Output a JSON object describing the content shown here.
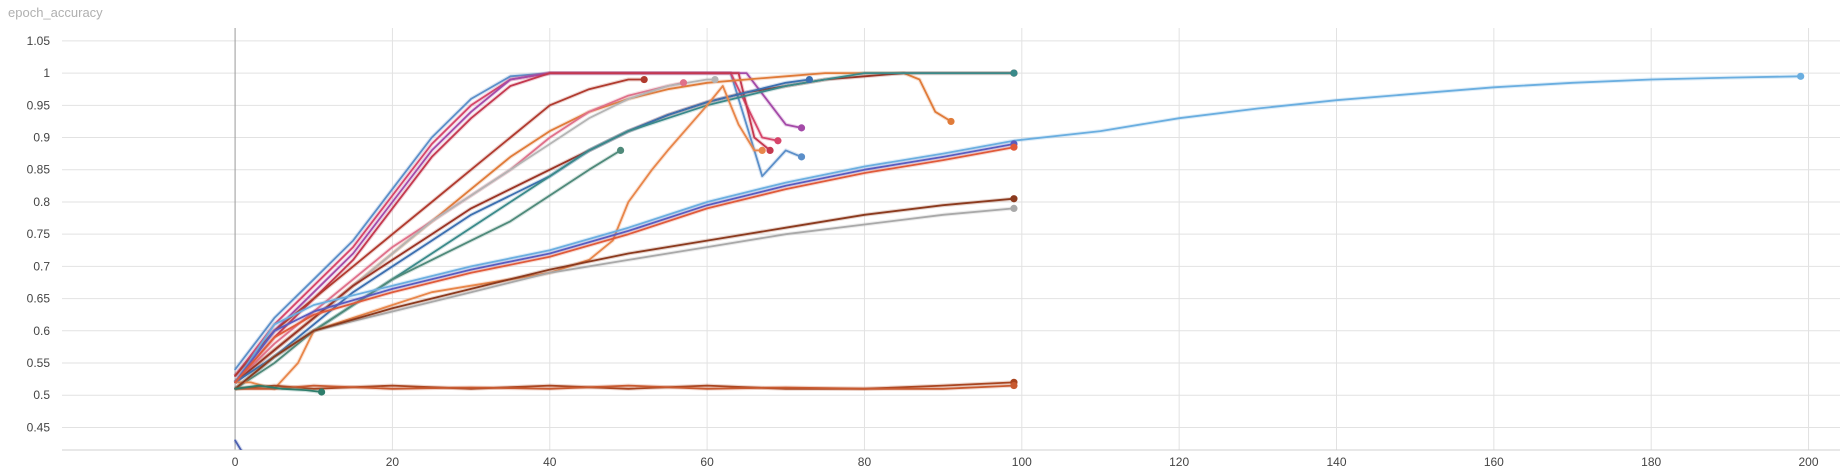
{
  "chart_data": {
    "type": "line",
    "title": "epoch_accuracy",
    "xlabel": "",
    "ylabel": "",
    "xlim": [
      -22,
      204
    ],
    "ylim": [
      0.415,
      1.07
    ],
    "x_ticks": [
      0,
      20,
      40,
      60,
      80,
      100,
      120,
      140,
      160,
      180,
      200
    ],
    "y_ticks": [
      0.45,
      0.5,
      0.55,
      0.6,
      0.65,
      0.7,
      0.75,
      0.8,
      0.85,
      0.9,
      0.95,
      1,
      1.05
    ],
    "y_tick_labels": [
      "0.45",
      "0.5",
      "0.55",
      "0.6",
      "0.65",
      "0.7",
      "0.75",
      "0.8",
      "0.85",
      "0.9",
      "0.95",
      "1",
      "1.05"
    ],
    "grid": true,
    "legend": "none",
    "series": [
      {
        "color": "#5b8fc9",
        "x": [
          0,
          5,
          10,
          15,
          20,
          25,
          30,
          35,
          40,
          45,
          50,
          55,
          60,
          63,
          65,
          67,
          70,
          72
        ],
        "y": [
          0.54,
          0.62,
          0.68,
          0.74,
          0.82,
          0.9,
          0.96,
          0.995,
          1.0,
          1.0,
          1.0,
          1.0,
          1.0,
          1.0,
          0.92,
          0.84,
          0.88,
          0.87
        ]
      },
      {
        "color": "#d6456a",
        "x": [
          0,
          5,
          10,
          15,
          20,
          25,
          30,
          35,
          40,
          45,
          50,
          55,
          60,
          63,
          65,
          67,
          69
        ],
        "y": [
          0.53,
          0.61,
          0.67,
          0.73,
          0.81,
          0.89,
          0.95,
          0.99,
          1.0,
          1.0,
          1.0,
          1.0,
          1.0,
          1.0,
          0.95,
          0.9,
          0.895
        ]
      },
      {
        "color": "#a44aa8",
        "x": [
          0,
          5,
          10,
          15,
          20,
          25,
          30,
          35,
          40,
          45,
          50,
          55,
          60,
          65,
          70,
          72
        ],
        "y": [
          0.53,
          0.6,
          0.66,
          0.72,
          0.8,
          0.88,
          0.94,
          0.99,
          1.0,
          1.0,
          1.0,
          1.0,
          1.0,
          1.0,
          0.92,
          0.915
        ]
      },
      {
        "color": "#c4384f",
        "x": [
          0,
          5,
          10,
          15,
          20,
          25,
          30,
          35,
          40,
          45,
          50,
          55,
          60,
          64,
          66,
          68
        ],
        "y": [
          0.52,
          0.59,
          0.65,
          0.71,
          0.79,
          0.87,
          0.93,
          0.98,
          1.0,
          1.0,
          1.0,
          1.0,
          1.0,
          1.0,
          0.9,
          0.88
        ]
      },
      {
        "color": "#b03a2e",
        "x": [
          0,
          5,
          10,
          15,
          20,
          25,
          30,
          35,
          40,
          45,
          50,
          52
        ],
        "y": [
          0.53,
          0.6,
          0.65,
          0.7,
          0.75,
          0.8,
          0.85,
          0.9,
          0.95,
          0.975,
          0.99,
          0.99
        ]
      },
      {
        "color": "#e07b39",
        "x": [
          0,
          5,
          10,
          15,
          20,
          25,
          30,
          35,
          40,
          45,
          50,
          55,
          60,
          65,
          70,
          75,
          80,
          85,
          87,
          89,
          91
        ],
        "y": [
          0.52,
          0.57,
          0.62,
          0.67,
          0.72,
          0.77,
          0.82,
          0.87,
          0.91,
          0.94,
          0.96,
          0.975,
          0.985,
          0.99,
          0.995,
          1.0,
          1.0,
          1.0,
          0.99,
          0.94,
          0.925
        ]
      },
      {
        "color": "#e0708a",
        "x": [
          0,
          5,
          10,
          15,
          20,
          25,
          30,
          35,
          40,
          45,
          50,
          55,
          57
        ],
        "y": [
          0.52,
          0.58,
          0.63,
          0.68,
          0.73,
          0.77,
          0.81,
          0.85,
          0.9,
          0.94,
          0.965,
          0.98,
          0.985
        ]
      },
      {
        "color": "#b5b5b5",
        "x": [
          0,
          5,
          10,
          15,
          20,
          25,
          30,
          35,
          40,
          45,
          50,
          55,
          60,
          61
        ],
        "y": [
          0.52,
          0.57,
          0.62,
          0.67,
          0.72,
          0.77,
          0.81,
          0.85,
          0.89,
          0.93,
          0.96,
          0.98,
          0.99,
          0.99
        ]
      },
      {
        "color": "#9a3324",
        "x": [
          0,
          5,
          10,
          15,
          20,
          25,
          30,
          35,
          40,
          45,
          50,
          55,
          60,
          65,
          70,
          75,
          80,
          85,
          90,
          95,
          99
        ],
        "y": [
          0.52,
          0.57,
          0.62,
          0.67,
          0.71,
          0.75,
          0.79,
          0.82,
          0.85,
          0.88,
          0.91,
          0.935,
          0.955,
          0.97,
          0.98,
          0.99,
          0.995,
          1.0,
          1.0,
          1.0,
          1.0
        ]
      },
      {
        "color": "#3b6fb0",
        "x": [
          0,
          5,
          10,
          15,
          20,
          25,
          30,
          35,
          40,
          45,
          50,
          55,
          60,
          65,
          70,
          73
        ],
        "y": [
          0.52,
          0.56,
          0.61,
          0.66,
          0.7,
          0.74,
          0.78,
          0.81,
          0.84,
          0.88,
          0.91,
          0.935,
          0.955,
          0.97,
          0.985,
          0.99
        ]
      },
      {
        "color": "#3a8a8a",
        "x": [
          0,
          5,
          10,
          15,
          20,
          25,
          30,
          35,
          40,
          45,
          50,
          55,
          60,
          65,
          70,
          75,
          80,
          85,
          90,
          95,
          99
        ],
        "y": [
          0.51,
          0.56,
          0.6,
          0.64,
          0.68,
          0.72,
          0.76,
          0.8,
          0.84,
          0.88,
          0.91,
          0.93,
          0.95,
          0.965,
          0.98,
          0.99,
          1.0,
          1.0,
          1.0,
          1.0,
          1.0
        ]
      },
      {
        "color": "#4f8a7a",
        "x": [
          0,
          5,
          10,
          15,
          20,
          25,
          30,
          35,
          40,
          45,
          49
        ],
        "y": [
          0.51,
          0.55,
          0.6,
          0.64,
          0.68,
          0.71,
          0.74,
          0.77,
          0.81,
          0.85,
          0.88
        ]
      },
      {
        "color": "#e8864a",
        "x": [
          0,
          2,
          5,
          8,
          10,
          15,
          20,
          25,
          30,
          35,
          40,
          45,
          48,
          50,
          53,
          55,
          60,
          62,
          64,
          66,
          67
        ],
        "y": [
          0.52,
          0.52,
          0.51,
          0.55,
          0.6,
          0.62,
          0.64,
          0.66,
          0.67,
          0.68,
          0.69,
          0.71,
          0.74,
          0.8,
          0.85,
          0.88,
          0.95,
          0.98,
          0.92,
          0.88,
          0.88
        ]
      },
      {
        "color": "#6aaee0",
        "x": [
          0,
          5,
          10,
          20,
          30,
          40,
          50,
          60,
          70,
          80,
          90,
          99,
          110,
          120,
          130,
          140,
          150,
          160,
          170,
          180,
          190,
          199
        ],
        "y": [
          0.52,
          0.61,
          0.64,
          0.67,
          0.7,
          0.725,
          0.76,
          0.8,
          0.83,
          0.855,
          0.875,
          0.895,
          0.91,
          0.93,
          0.945,
          0.958,
          0.968,
          0.978,
          0.985,
          0.99,
          0.993,
          0.995
        ]
      },
      {
        "color": "#5a5cc0",
        "x": [
          0,
          5,
          10,
          20,
          30,
          40,
          50,
          60,
          70,
          80,
          90,
          99
        ],
        "y": [
          0.52,
          0.6,
          0.63,
          0.665,
          0.695,
          0.72,
          0.755,
          0.795,
          0.825,
          0.85,
          0.87,
          0.89
        ]
      },
      {
        "color": "#e05a3a",
        "x": [
          0,
          5,
          10,
          20,
          30,
          40,
          50,
          60,
          70,
          80,
          90,
          99
        ],
        "y": [
          0.52,
          0.59,
          0.625,
          0.66,
          0.69,
          0.715,
          0.75,
          0.79,
          0.82,
          0.845,
          0.865,
          0.885
        ]
      },
      {
        "color": "#a9a9a9",
        "x": [
          0,
          5,
          10,
          20,
          30,
          40,
          50,
          60,
          70,
          80,
          90,
          99
        ],
        "y": [
          0.51,
          0.56,
          0.6,
          0.63,
          0.66,
          0.69,
          0.71,
          0.73,
          0.75,
          0.765,
          0.78,
          0.79
        ]
      },
      {
        "color": "#8b3a1e",
        "x": [
          0,
          5,
          10,
          20,
          30,
          40,
          50,
          60,
          70,
          80,
          90,
          99
        ],
        "y": [
          0.51,
          0.56,
          0.6,
          0.635,
          0.665,
          0.695,
          0.72,
          0.74,
          0.76,
          0.78,
          0.795,
          0.805
        ]
      },
      {
        "color": "#a8441f",
        "x": [
          0,
          5,
          10,
          20,
          30,
          40,
          50,
          60,
          70,
          80,
          90,
          99
        ],
        "y": [
          0.51,
          0.515,
          0.51,
          0.515,
          0.51,
          0.515,
          0.51,
          0.515,
          0.51,
          0.51,
          0.515,
          0.52
        ]
      },
      {
        "color": "#c85a30",
        "x": [
          0,
          5,
          10,
          20,
          30,
          40,
          50,
          60,
          70,
          80,
          90,
          99
        ],
        "y": [
          0.51,
          0.51,
          0.515,
          0.51,
          0.512,
          0.51,
          0.515,
          0.51,
          0.512,
          0.51,
          0.51,
          0.515
        ]
      },
      {
        "color": "#2e7d6b",
        "x": [
          0,
          3,
          6,
          9,
          11
        ],
        "y": [
          0.51,
          0.515,
          0.51,
          0.508,
          0.505
        ]
      },
      {
        "color": "#4a5fb0",
        "x": [
          0,
          1,
          2,
          3,
          5
        ],
        "y": [
          0.43,
          0.41,
          0.405,
          0.395,
          0.4
        ]
      }
    ]
  }
}
